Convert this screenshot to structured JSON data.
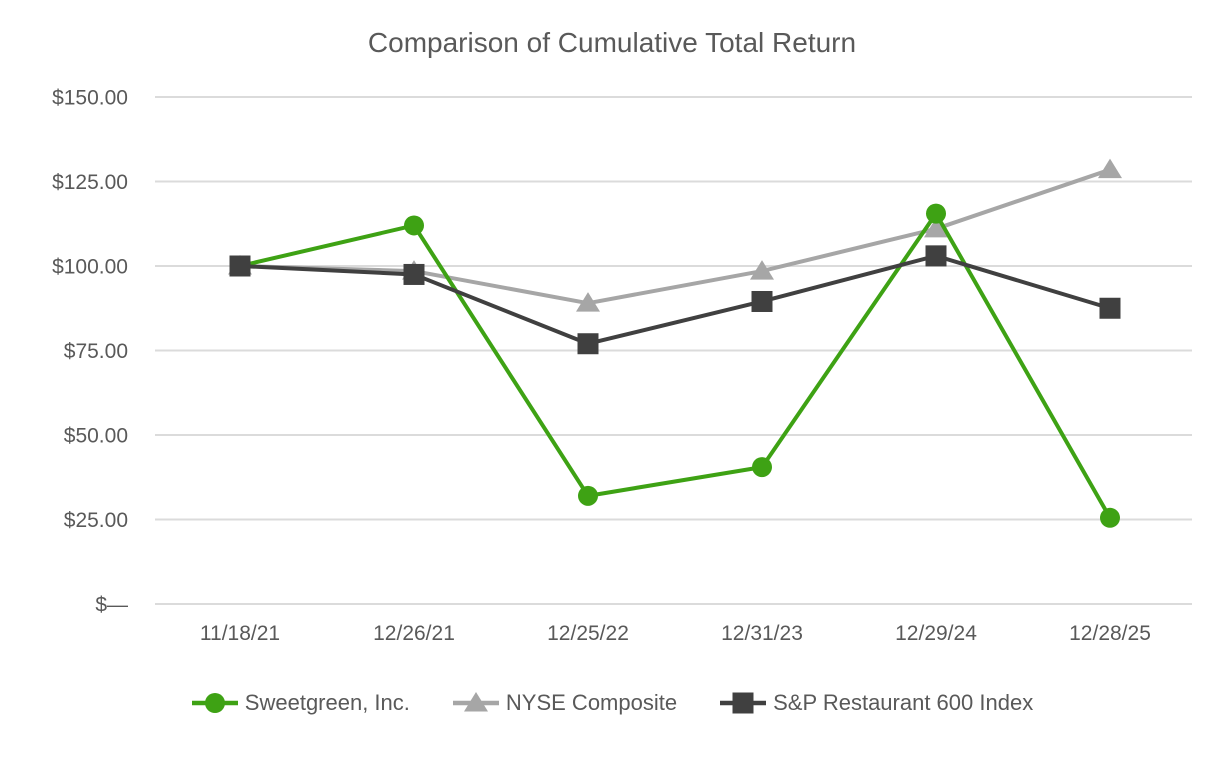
{
  "chart_data": {
    "type": "line",
    "title": "Comparison of Cumulative Total Return",
    "categories": [
      "11/18/21",
      "12/26/21",
      "12/25/22",
      "12/31/23",
      "12/29/24",
      "12/28/25"
    ],
    "series": [
      {
        "name": "NYSE Composite",
        "marker": "triangle",
        "color": "#A6A6A6",
        "values": [
          100,
          98.5,
          89,
          98.5,
          111,
          128.5
        ]
      },
      {
        "name": "Sweetgreen, Inc.",
        "marker": "circle",
        "color": "#3EA214",
        "values": [
          100,
          112,
          32,
          40.5,
          115.5,
          25.5
        ]
      },
      {
        "name": "S&P Restaurant 600 Index",
        "marker": "square",
        "color": "#404040",
        "values": [
          100,
          97.5,
          77,
          89.5,
          103,
          87.5
        ]
      }
    ],
    "y_ticks": [
      {
        "label": "$—",
        "value": 0
      },
      {
        "label": "$25.00",
        "value": 25
      },
      {
        "label": "$50.00",
        "value": 50
      },
      {
        "label": "$75.00",
        "value": 75
      },
      {
        "label": "$100.00",
        "value": 100
      },
      {
        "label": "$125.00",
        "value": 125
      },
      {
        "label": "$150.00",
        "value": 150
      }
    ],
    "ylim": [
      0,
      150
    ],
    "grid": true,
    "legend_position": "bottom"
  },
  "legend": {
    "items": [
      {
        "label": "Sweetgreen, Inc."
      },
      {
        "label": "NYSE Composite"
      },
      {
        "label": "S&P Restaurant 600 Index"
      }
    ]
  },
  "colors": {
    "text": "#595959",
    "gridline": "#DBDBDB",
    "background": "#FFFFFF"
  }
}
